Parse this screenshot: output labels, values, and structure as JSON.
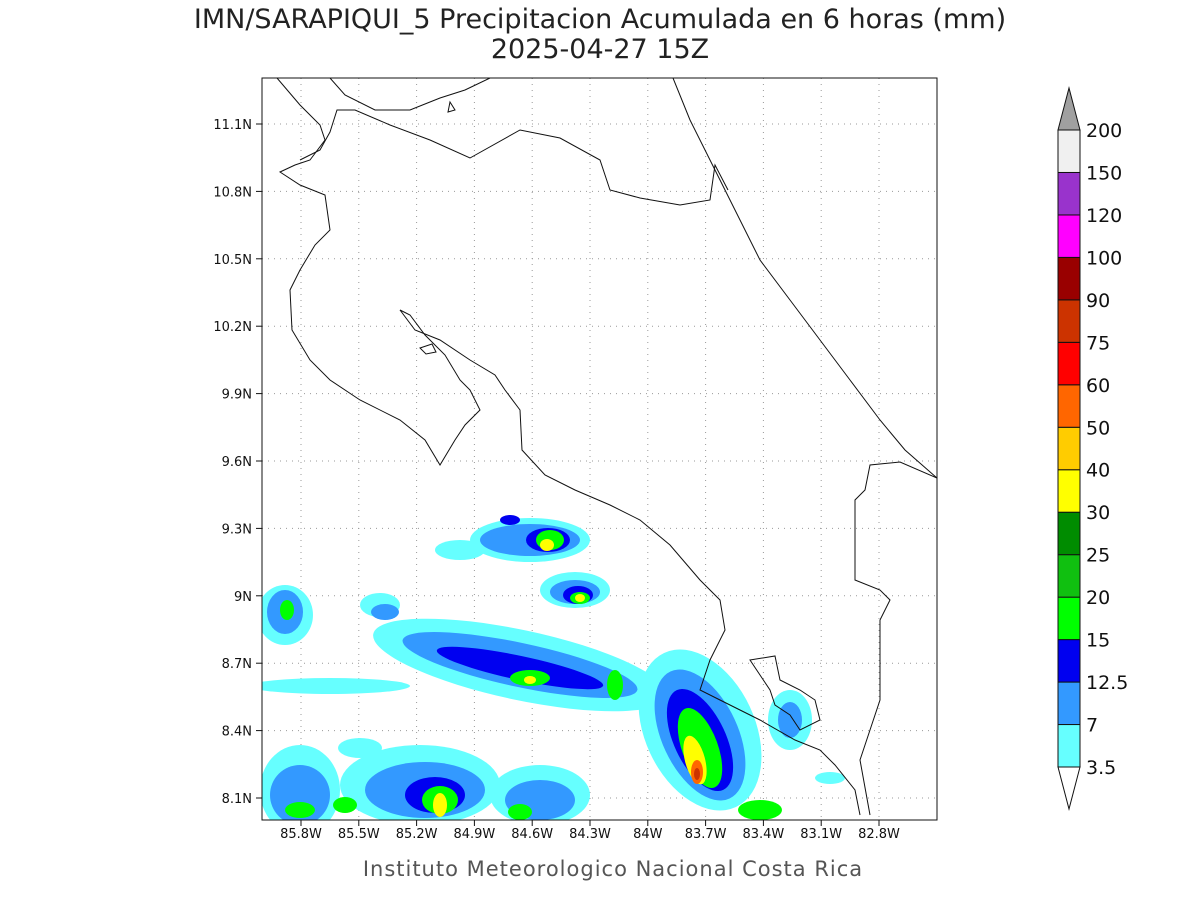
{
  "title": "IMN/SARAPIQUI_5 Precipitacion Acumulada en 6 horas (mm)",
  "subtitle": "2025-04-27 15Z",
  "lat_labels": [
    "11.1N",
    "10.8N",
    "10.5N",
    "10.2N",
    "9.9N",
    "9.6N",
    "9.3N",
    "9N",
    "8.7N",
    "8.4N",
    "8.1N"
  ],
  "lon_labels": [
    "85.8W",
    "85.5W",
    "85.2W",
    "84.9W",
    "84.6W",
    "84.3W",
    "84W",
    "83.7W",
    "83.4W",
    "83.1W",
    "82.8W"
  ],
  "legend": {
    "levels": [
      3.5,
      7,
      12.5,
      15,
      20,
      25,
      30,
      40,
      50,
      60,
      75,
      90,
      100,
      120,
      150,
      200
    ],
    "colors": [
      "#66ffff",
      "#3399ff",
      "#0000f0",
      "#00ff00",
      "#10c010",
      "#008c00",
      "#ffff00",
      "#ffcc00",
      "#ff6600",
      "#ff0000",
      "#cc3300",
      "#990000",
      "#ff00ff",
      "#9933cc",
      "#f0f0f0"
    ],
    "over_color": "#a0a0a0",
    "under_color": "#ffffff"
  },
  "credit": "Instituto Meteorologico Nacional Costa Rica"
}
